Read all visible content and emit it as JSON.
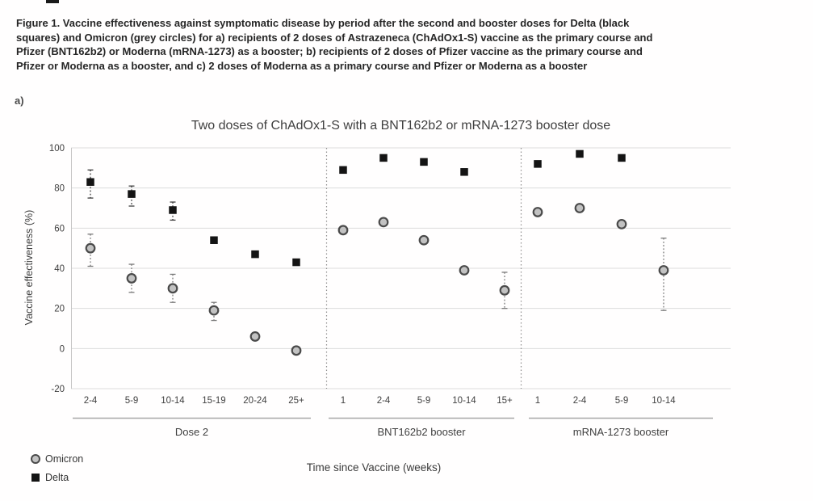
{
  "figure": {
    "caption_lines": [
      "Figure 1. Vaccine effectiveness against symptomatic disease by period after the second and booster doses for Delta (black",
      "squares) and Omicron (grey circles) for a) recipients of 2 doses of Astrazeneca (ChAdOx1-S) vaccine as the primary course and",
      "Pfizer (BNT162b2) or Moderna (mRNA-1273) as a booster; b) recipients of 2 doses of Pfizer vaccine as the primary course and",
      "Pfizer or Moderna as a booster, and c) 2 doses of Moderna as a primary course and Pfizer or Moderna as a booster"
    ],
    "panel_label": "a)"
  },
  "chart_data": {
    "type": "scatter",
    "title": "Two doses of ChAdOx1-S with a BNT162b2 or mRNA-1273 booster dose",
    "ylabel": "Vaccine effectiveness (%)",
    "xlabel": "Time since Vaccine (weeks)",
    "ylim": [
      -20,
      100
    ],
    "ytick_step": 20,
    "grid": true,
    "legend": [
      "Omicron",
      "Delta"
    ],
    "legend_position": "bottom-left",
    "series_styles": {
      "Delta": {
        "marker": "square",
        "fill": "#141414",
        "error_color": "#3d3d3d"
      },
      "Omicron": {
        "marker": "circle",
        "fill": "#c2c2c2",
        "stroke": "#4a4a4a",
        "error_color": "#7a7a7a"
      }
    },
    "groups": [
      {
        "label": "Dose 2",
        "categories": [
          "2-4",
          "5-9",
          "10-14",
          "15-19",
          "20-24",
          "25+"
        ],
        "series": {
          "Delta": [
            {
              "y": 83,
              "lo": 75,
              "hi": 89
            },
            {
              "y": 77,
              "lo": 71,
              "hi": 81
            },
            {
              "y": 69,
              "lo": 64,
              "hi": 73
            },
            {
              "y": 54
            },
            {
              "y": 47
            },
            {
              "y": 43
            }
          ],
          "Omicron": [
            {
              "y": 50,
              "lo": 41,
              "hi": 57
            },
            {
              "y": 35,
              "lo": 28,
              "hi": 42
            },
            {
              "y": 30,
              "lo": 23,
              "hi": 37
            },
            {
              "y": 19,
              "lo": 14,
              "hi": 23
            },
            {
              "y": 6
            },
            {
              "y": -1
            }
          ]
        }
      },
      {
        "label": "BNT162b2 booster",
        "categories": [
          "1",
          "2-4",
          "5-9",
          "10-14",
          "15+"
        ],
        "series": {
          "Delta": [
            {
              "y": 89
            },
            {
              "y": 95
            },
            {
              "y": 93
            },
            {
              "y": 88
            },
            null
          ],
          "Omicron": [
            {
              "y": 59
            },
            {
              "y": 63
            },
            {
              "y": 54
            },
            {
              "y": 39
            },
            {
              "y": 29,
              "lo": 20,
              "hi": 38
            }
          ]
        }
      },
      {
        "label": "mRNA-1273 booster",
        "categories": [
          "1",
          "2-4",
          "5-9",
          "10-14"
        ],
        "series": {
          "Delta": [
            {
              "y": 92
            },
            {
              "y": 97
            },
            {
              "y": 95
            },
            null
          ],
          "Omicron": [
            {
              "y": 68
            },
            {
              "y": 70
            },
            {
              "y": 62
            },
            {
              "y": 39,
              "lo": 19,
              "hi": 55
            }
          ]
        }
      }
    ]
  },
  "colors": {
    "grid": "#dcdcdc",
    "axis": "#c6c6c6",
    "separator": "#8f8f8f",
    "underline": "#a8a8a8",
    "tick_text": "#3f3f3f"
  }
}
